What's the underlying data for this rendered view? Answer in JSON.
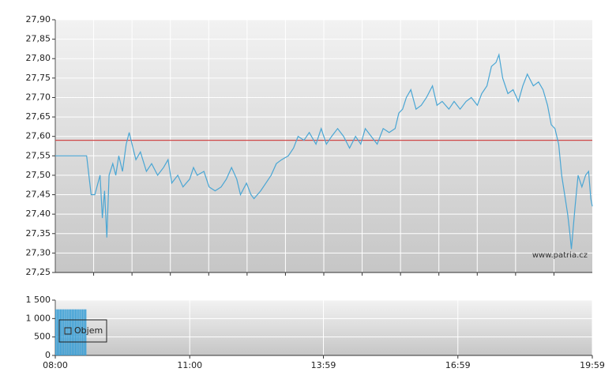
{
  "chart_data": [
    {
      "type": "line",
      "color": "#4aa6d4",
      "reference_line": 27.59,
      "reference_color": "#d04848",
      "annotation": "www.patria.cz",
      "grid": true,
      "xlim": [
        "08:00",
        "19:59"
      ],
      "ylim": [
        27.25,
        27.9
      ],
      "yticks": [
        {
          "value": 27.25,
          "label": "27,25"
        },
        {
          "value": 27.3,
          "label": "27,30"
        },
        {
          "value": 27.35,
          "label": "27,35"
        },
        {
          "value": 27.4,
          "label": "27,40"
        },
        {
          "value": 27.45,
          "label": "27,45"
        },
        {
          "value": 27.5,
          "label": "27,50"
        },
        {
          "value": 27.55,
          "label": "27,55"
        },
        {
          "value": 27.6,
          "label": "27,60"
        },
        {
          "value": 27.65,
          "label": "27,65"
        },
        {
          "value": 27.7,
          "label": "27,70"
        },
        {
          "value": 27.75,
          "label": "27,75"
        },
        {
          "value": 27.8,
          "label": "27,80"
        },
        {
          "value": 27.85,
          "label": "27,85"
        },
        {
          "value": 27.9,
          "label": "27,90"
        }
      ],
      "x": [
        "08:00",
        "08:42",
        "08:48",
        "08:53",
        "09:00",
        "09:03",
        "09:06",
        "09:09",
        "09:12",
        "09:17",
        "09:21",
        "09:25",
        "09:30",
        "09:35",
        "09:39",
        "09:44",
        "09:48",
        "09:54",
        "10:02",
        "10:09",
        "10:17",
        "10:25",
        "10:31",
        "10:36",
        "10:44",
        "10:51",
        "11:00",
        "11:05",
        "11:10",
        "11:19",
        "11:26",
        "11:34",
        "11:42",
        "11:49",
        "11:56",
        "12:03",
        "12:08",
        "12:16",
        "12:22",
        "12:26",
        "12:35",
        "12:42",
        "12:49",
        "12:56",
        "13:03",
        "13:12",
        "13:19",
        "13:25",
        "13:33",
        "13:40",
        "13:49",
        "13:56",
        "14:03",
        "14:10",
        "14:18",
        "14:26",
        "14:34",
        "14:42",
        "14:49",
        "14:55",
        "15:03",
        "15:11",
        "15:19",
        "15:27",
        "15:35",
        "15:40",
        "15:45",
        "15:50",
        "15:56",
        "16:03",
        "16:10",
        "16:17",
        "16:25",
        "16:31",
        "16:38",
        "16:47",
        "16:54",
        "17:02",
        "17:10",
        "17:17",
        "17:25",
        "17:31",
        "17:38",
        "17:44",
        "17:50",
        "17:54",
        "17:59",
        "18:06",
        "18:13",
        "18:20",
        "18:26",
        "18:32",
        "18:40",
        "18:47",
        "18:53",
        "18:59",
        "19:04",
        "19:09",
        "19:14",
        "19:18",
        "19:22",
        "19:26",
        "19:29",
        "19:31",
        "19:36",
        "19:40",
        "19:45",
        "19:50",
        "19:54",
        "19:57",
        "19:59"
      ],
      "values": [
        27.55,
        27.55,
        27.45,
        27.45,
        27.5,
        27.39,
        27.46,
        27.34,
        27.5,
        27.53,
        27.5,
        27.55,
        27.51,
        27.58,
        27.61,
        27.57,
        27.54,
        27.56,
        27.51,
        27.53,
        27.5,
        27.52,
        27.54,
        27.48,
        27.5,
        27.47,
        27.49,
        27.52,
        27.5,
        27.51,
        27.47,
        27.46,
        27.47,
        27.49,
        27.52,
        27.49,
        27.45,
        27.48,
        27.45,
        27.44,
        27.46,
        27.48,
        27.5,
        27.53,
        27.54,
        27.55,
        27.57,
        27.6,
        27.59,
        27.61,
        27.58,
        27.62,
        27.58,
        27.6,
        27.62,
        27.6,
        27.57,
        27.6,
        27.58,
        27.62,
        27.6,
        27.58,
        27.62,
        27.61,
        27.62,
        27.66,
        27.67,
        27.7,
        27.72,
        27.67,
        27.68,
        27.7,
        27.73,
        27.68,
        27.69,
        27.67,
        27.69,
        27.67,
        27.69,
        27.7,
        27.68,
        27.71,
        27.73,
        27.78,
        27.79,
        27.81,
        27.75,
        27.71,
        27.72,
        27.69,
        27.73,
        27.76,
        27.73,
        27.74,
        27.72,
        27.68,
        27.63,
        27.62,
        27.58,
        27.5,
        27.45,
        27.4,
        27.35,
        27.31,
        27.42,
        27.5,
        27.47,
        27.5,
        27.51,
        27.44,
        27.42
      ]
    },
    {
      "type": "bar",
      "grid": true,
      "legend": "upper-left",
      "xlim": [
        "08:00",
        "19:59"
      ],
      "xticks": [
        "08:00",
        "11:00",
        "13:59",
        "16:59",
        "19:59"
      ],
      "ylim": [
        0,
        1500
      ],
      "yticks": [
        0,
        500,
        {
          "value": 1000,
          "label": "1 000"
        },
        {
          "value": 1500,
          "label": "1 500"
        }
      ],
      "x": [
        "08:00",
        "08:02",
        "08:04",
        "08:06",
        "08:08",
        "08:10",
        "08:12",
        "08:14",
        "08:16",
        "08:18",
        "08:20",
        "08:22",
        "08:24",
        "08:26",
        "08:28",
        "08:30",
        "08:32",
        "08:34",
        "08:36",
        "08:38",
        "08:40"
      ],
      "series": [
        {
          "name": "Objem",
          "color": "#3a9fd6",
          "values": [
            1250,
            1250,
            1250,
            1250,
            1250,
            1250,
            1250,
            1250,
            1250,
            1250,
            1250,
            1250,
            1250,
            1250,
            1250,
            1250,
            1250,
            1250,
            1250,
            1250,
            1250
          ]
        }
      ]
    }
  ]
}
